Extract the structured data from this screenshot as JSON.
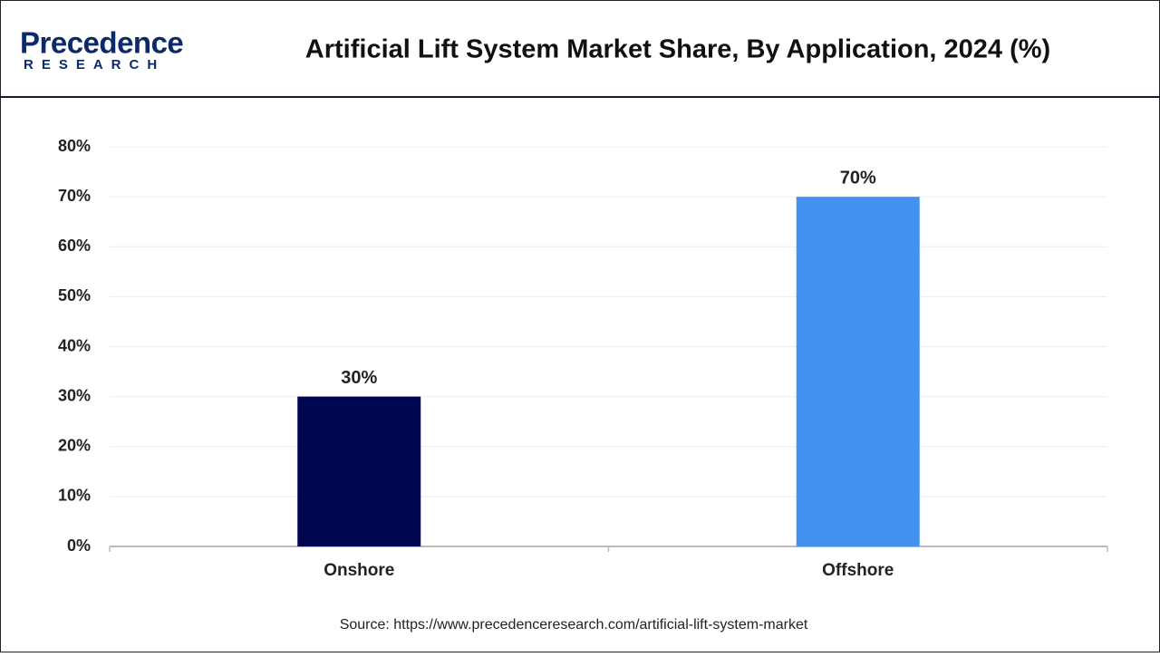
{
  "logo": {
    "name": "Precedence",
    "tagline": "RESEARCH"
  },
  "chart_data": {
    "type": "bar",
    "title": "Artificial Lift System Market Share, By Application, 2024 (%)",
    "categories": [
      "Onshore",
      "Offshore"
    ],
    "values": [
      30,
      70
    ],
    "value_labels": [
      "30%",
      "70%"
    ],
    "colors": [
      "#000650",
      "#4492ef"
    ],
    "ylim": [
      0,
      80
    ],
    "yticks": [
      {
        "value": 0,
        "label": "0%"
      },
      {
        "value": 10,
        "label": "10%"
      },
      {
        "value": 20,
        "label": "20%"
      },
      {
        "value": 30,
        "label": "30%"
      },
      {
        "value": 40,
        "label": "40%"
      },
      {
        "value": 50,
        "label": "50%"
      },
      {
        "value": 60,
        "label": "60%"
      },
      {
        "value": 70,
        "label": "70%"
      },
      {
        "value": 80,
        "label": "80%"
      }
    ],
    "grid": true,
    "source": "Source: https://www.precedenceresearch.com/artificial-lift-system-market"
  }
}
